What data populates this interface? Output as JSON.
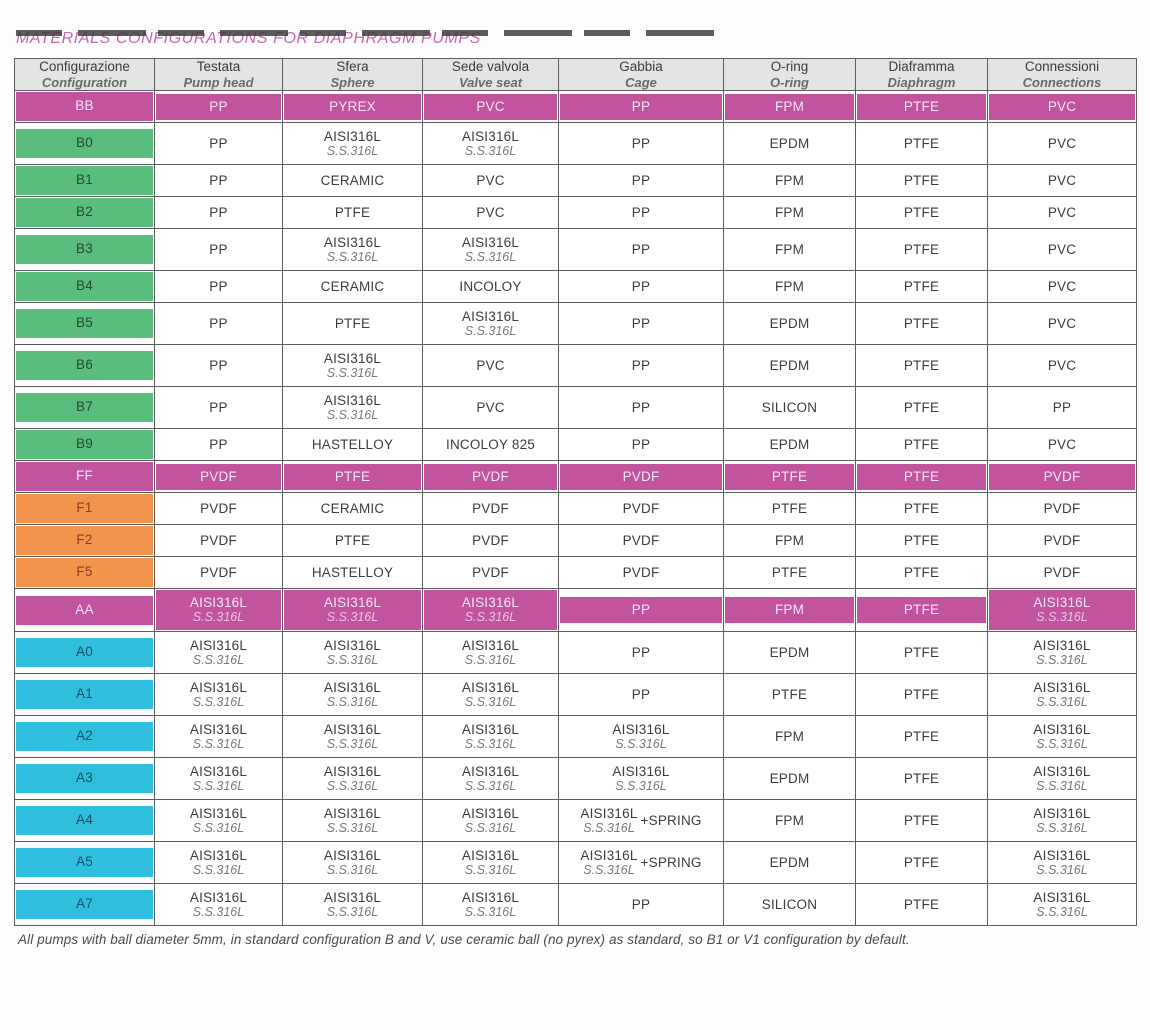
{
  "page": {
    "title": "MATERIALS CONFIGURATIONS FOR DIAPHRAGM PUMPS",
    "footnote": "All pumps with ball diameter 5mm, in standard configuration B and V, use ceramic ball (no pyrex) as standard, so B1 or V1 configuration by default.",
    "colors": {
      "magenta": "#c1539f",
      "green": "#5abc7d",
      "orange": "#f3944d",
      "cyan": "#2fbedd",
      "header_bg": "#e4e4e4"
    }
  },
  "table": {
    "columns": [
      {
        "it": "Configurazione",
        "en": "Configuration"
      },
      {
        "it": "Testata",
        "en": "Pump head"
      },
      {
        "it": "Sfera",
        "en": "Sphere"
      },
      {
        "it": "Sede valvola",
        "en": "Valve seat"
      },
      {
        "it": "Gabbia",
        "en": "Cage"
      },
      {
        "it": "O-ring",
        "en": "O-ring"
      },
      {
        "it": "Diaframma",
        "en": "Diaphragm"
      },
      {
        "it": "Connessioni",
        "en": "Connections"
      }
    ],
    "rows": [
      {
        "id": "BB",
        "type": "magenta",
        "cells": [
          {
            "m": "PP"
          },
          {
            "m": "PYREX"
          },
          {
            "m": "PVC"
          },
          {
            "m": "PP"
          },
          {
            "m": "FPM"
          },
          {
            "m": "PTFE"
          },
          {
            "m": "PVC"
          }
        ]
      },
      {
        "id": "B0",
        "type": "green",
        "cells": [
          {
            "m": "PP"
          },
          {
            "m": "AISI316L",
            "s": "S.S.316L"
          },
          {
            "m": "AISI316L",
            "s": "S.S.316L"
          },
          {
            "m": "PP"
          },
          {
            "m": "EPDM"
          },
          {
            "m": "PTFE"
          },
          {
            "m": "PVC"
          }
        ]
      },
      {
        "id": "B1",
        "type": "green",
        "cells": [
          {
            "m": "PP"
          },
          {
            "m": "CERAMIC"
          },
          {
            "m": "PVC"
          },
          {
            "m": "PP"
          },
          {
            "m": "FPM"
          },
          {
            "m": "PTFE"
          },
          {
            "m": "PVC"
          }
        ]
      },
      {
        "id": "B2",
        "type": "green",
        "cells": [
          {
            "m": "PP"
          },
          {
            "m": "PTFE"
          },
          {
            "m": "PVC"
          },
          {
            "m": "PP"
          },
          {
            "m": "FPM"
          },
          {
            "m": "PTFE"
          },
          {
            "m": "PVC"
          }
        ]
      },
      {
        "id": "B3",
        "type": "green",
        "cells": [
          {
            "m": "PP"
          },
          {
            "m": "AISI316L",
            "s": "S.S.316L"
          },
          {
            "m": "AISI316L",
            "s": "S.S.316L"
          },
          {
            "m": "PP"
          },
          {
            "m": "FPM"
          },
          {
            "m": "PTFE"
          },
          {
            "m": "PVC"
          }
        ]
      },
      {
        "id": "B4",
        "type": "green",
        "cells": [
          {
            "m": "PP"
          },
          {
            "m": "CERAMIC"
          },
          {
            "m": "INCOLOY"
          },
          {
            "m": "PP"
          },
          {
            "m": "FPM"
          },
          {
            "m": "PTFE"
          },
          {
            "m": "PVC"
          }
        ]
      },
      {
        "id": "B5",
        "type": "green",
        "cells": [
          {
            "m": "PP"
          },
          {
            "m": "PTFE"
          },
          {
            "m": "AISI316L",
            "s": "S.S.316L"
          },
          {
            "m": "PP"
          },
          {
            "m": "EPDM"
          },
          {
            "m": "PTFE"
          },
          {
            "m": "PVC"
          }
        ]
      },
      {
        "id": "B6",
        "type": "green",
        "cells": [
          {
            "m": "PP"
          },
          {
            "m": "AISI316L",
            "s": "S.S.316L"
          },
          {
            "m": "PVC"
          },
          {
            "m": "PP"
          },
          {
            "m": "EPDM"
          },
          {
            "m": "PTFE"
          },
          {
            "m": "PVC"
          }
        ]
      },
      {
        "id": "B7",
        "type": "green",
        "cells": [
          {
            "m": "PP"
          },
          {
            "m": "AISI316L",
            "s": "S.S.316L"
          },
          {
            "m": "PVC"
          },
          {
            "m": "PP"
          },
          {
            "m": "SILICON"
          },
          {
            "m": "PTFE"
          },
          {
            "m": "PP"
          }
        ]
      },
      {
        "id": "B9",
        "type": "green",
        "cells": [
          {
            "m": "PP"
          },
          {
            "m": "HASTELLOY"
          },
          {
            "m": "INCOLOY 825"
          },
          {
            "m": "PP"
          },
          {
            "m": "EPDM"
          },
          {
            "m": "PTFE"
          },
          {
            "m": "PVC"
          }
        ]
      },
      {
        "id": "FF",
        "type": "magenta",
        "cells": [
          {
            "m": "PVDF"
          },
          {
            "m": "PTFE"
          },
          {
            "m": "PVDF"
          },
          {
            "m": "PVDF"
          },
          {
            "m": "PTFE"
          },
          {
            "m": "PTFE"
          },
          {
            "m": "PVDF"
          }
        ]
      },
      {
        "id": "F1",
        "type": "orange",
        "cells": [
          {
            "m": "PVDF"
          },
          {
            "m": "CERAMIC"
          },
          {
            "m": "PVDF"
          },
          {
            "m": "PVDF"
          },
          {
            "m": "PTFE"
          },
          {
            "m": "PTFE"
          },
          {
            "m": "PVDF"
          }
        ]
      },
      {
        "id": "F2",
        "type": "orange",
        "cells": [
          {
            "m": "PVDF"
          },
          {
            "m": "PTFE"
          },
          {
            "m": "PVDF"
          },
          {
            "m": "PVDF"
          },
          {
            "m": "FPM"
          },
          {
            "m": "PTFE"
          },
          {
            "m": "PVDF"
          }
        ]
      },
      {
        "id": "F5",
        "type": "orange",
        "cells": [
          {
            "m": "PVDF"
          },
          {
            "m": "HASTELLOY"
          },
          {
            "m": "PVDF"
          },
          {
            "m": "PVDF"
          },
          {
            "m": "PTFE"
          },
          {
            "m": "PTFE"
          },
          {
            "m": "PVDF"
          }
        ]
      },
      {
        "id": "AA",
        "type": "magenta",
        "cells": [
          {
            "m": "AISI316L",
            "s": "S.S.316L"
          },
          {
            "m": "AISI316L",
            "s": "S.S.316L"
          },
          {
            "m": "AISI316L",
            "s": "S.S.316L"
          },
          {
            "m": "PP"
          },
          {
            "m": "FPM"
          },
          {
            "m": "PTFE"
          },
          {
            "m": "AISI316L",
            "s": "S.S.316L"
          }
        ]
      },
      {
        "id": "A0",
        "type": "cyan",
        "cells": [
          {
            "m": "AISI316L",
            "s": "S.S.316L"
          },
          {
            "m": "AISI316L",
            "s": "S.S.316L"
          },
          {
            "m": "AISI316L",
            "s": "S.S.316L"
          },
          {
            "m": "PP"
          },
          {
            "m": "EPDM"
          },
          {
            "m": "PTFE"
          },
          {
            "m": "AISI316L",
            "s": "S.S.316L"
          }
        ]
      },
      {
        "id": "A1",
        "type": "cyan",
        "cells": [
          {
            "m": "AISI316L",
            "s": "S.S.316L"
          },
          {
            "m": "AISI316L",
            "s": "S.S.316L"
          },
          {
            "m": "AISI316L",
            "s": "S.S.316L"
          },
          {
            "m": "PP"
          },
          {
            "m": "PTFE"
          },
          {
            "m": "PTFE"
          },
          {
            "m": "AISI316L",
            "s": "S.S.316L"
          }
        ]
      },
      {
        "id": "A2",
        "type": "cyan",
        "cells": [
          {
            "m": "AISI316L",
            "s": "S.S.316L"
          },
          {
            "m": "AISI316L",
            "s": "S.S.316L"
          },
          {
            "m": "AISI316L",
            "s": "S.S.316L"
          },
          {
            "m": "AISI316L",
            "s": "S.S.316L"
          },
          {
            "m": "FPM"
          },
          {
            "m": "PTFE"
          },
          {
            "m": "AISI316L",
            "s": "S.S.316L"
          }
        ]
      },
      {
        "id": "A3",
        "type": "cyan",
        "cells": [
          {
            "m": "AISI316L",
            "s": "S.S.316L"
          },
          {
            "m": "AISI316L",
            "s": "S.S.316L"
          },
          {
            "m": "AISI316L",
            "s": "S.S.316L"
          },
          {
            "m": "AISI316L",
            "s": "S.S.316L"
          },
          {
            "m": "EPDM"
          },
          {
            "m": "PTFE"
          },
          {
            "m": "AISI316L",
            "s": "S.S.316L"
          }
        ]
      },
      {
        "id": "A4",
        "type": "cyan",
        "cells": [
          {
            "m": "AISI316L",
            "s": "S.S.316L"
          },
          {
            "m": "AISI316L",
            "s": "S.S.316L"
          },
          {
            "m": "AISI316L",
            "s": "S.S.316L"
          },
          {
            "m": "AISI316L",
            "s": "S.S.316L",
            "x": "+SPRING"
          },
          {
            "m": "FPM"
          },
          {
            "m": "PTFE"
          },
          {
            "m": "AISI316L",
            "s": "S.S.316L"
          }
        ]
      },
      {
        "id": "A5",
        "type": "cyan",
        "cells": [
          {
            "m": "AISI316L",
            "s": "S.S.316L"
          },
          {
            "m": "AISI316L",
            "s": "S.S.316L"
          },
          {
            "m": "AISI316L",
            "s": "S.S.316L"
          },
          {
            "m": "AISI316L",
            "s": "S.S.316L",
            "x": "+SPRING"
          },
          {
            "m": "EPDM"
          },
          {
            "m": "PTFE"
          },
          {
            "m": "AISI316L",
            "s": "S.S.316L"
          }
        ]
      },
      {
        "id": "A7",
        "type": "cyan",
        "cells": [
          {
            "m": "AISI316L",
            "s": "S.S.316L"
          },
          {
            "m": "AISI316L",
            "s": "S.S.316L"
          },
          {
            "m": "AISI316L",
            "s": "S.S.316L"
          },
          {
            "m": "PP"
          },
          {
            "m": "SILICON"
          },
          {
            "m": "PTFE"
          },
          {
            "m": "AISI316L",
            "s": "S.S.316L"
          }
        ]
      }
    ]
  }
}
